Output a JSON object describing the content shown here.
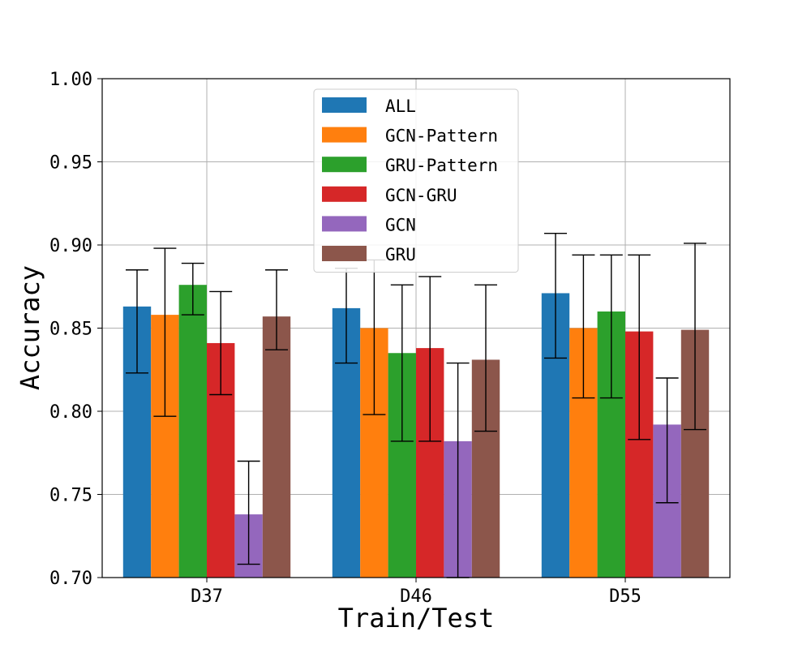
{
  "chart_data": {
    "type": "bar",
    "xlabel": "Train/Test",
    "ylabel": "Accuracy",
    "ylim": [
      0.7,
      1.0
    ],
    "yticks": [
      "0.70",
      "0.75",
      "0.80",
      "0.85",
      "0.90",
      "0.95",
      "1.00"
    ],
    "yticks_values": [
      0.7,
      0.75,
      0.8,
      0.85,
      0.9,
      0.95,
      1.0
    ],
    "grid": true,
    "legend_position": "top-center",
    "categories": [
      "D37",
      "D46",
      "D55"
    ],
    "series": [
      {
        "name": "ALL",
        "color": "#1f77b4",
        "values": [
          0.863,
          0.862,
          0.871
        ],
        "err_low": [
          0.823,
          0.829,
          0.832
        ],
        "err_high": [
          0.885,
          0.886,
          0.907
        ]
      },
      {
        "name": "GCN-Pattern",
        "color": "#ff7f0e",
        "values": [
          0.858,
          0.85,
          0.85
        ],
        "err_low": [
          0.797,
          0.798,
          0.808
        ],
        "err_high": [
          0.898,
          0.891,
          0.894
        ]
      },
      {
        "name": "GRU-Pattern",
        "color": "#2ca02c",
        "values": [
          0.876,
          0.835,
          0.86
        ],
        "err_low": [
          0.858,
          0.782,
          0.808
        ],
        "err_high": [
          0.889,
          0.876,
          0.894
        ]
      },
      {
        "name": "GCN-GRU",
        "color": "#d62728",
        "values": [
          0.841,
          0.838,
          0.848
        ],
        "err_low": [
          0.81,
          0.782,
          0.783
        ],
        "err_high": [
          0.872,
          0.881,
          0.894
        ]
      },
      {
        "name": "GCN",
        "color": "#9467bd",
        "values": [
          0.738,
          0.782,
          0.792
        ],
        "err_low": [
          0.708,
          0.7,
          0.745
        ],
        "err_high": [
          0.77,
          0.829,
          0.82
        ]
      },
      {
        "name": "GRU",
        "color": "#8c564b",
        "values": [
          0.857,
          0.831,
          0.849
        ],
        "err_low": [
          0.837,
          0.788,
          0.789
        ],
        "err_high": [
          0.885,
          0.876,
          0.901
        ]
      }
    ]
  }
}
